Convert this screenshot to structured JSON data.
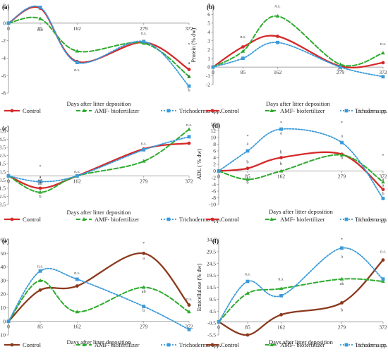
{
  "colors": {
    "Control": "#d42a2a",
    "AMF- biofertilizer": "#2eaa2e",
    "Trichoderma spp.": "#3a9ad9",
    "ControlBrown": "#8b3a1e"
  },
  "chart_data": [
    {
      "type": "line",
      "panel": "(a)",
      "ylabel": "Energy ( MJ kg⁻¹)",
      "xlabel": "Days after litter deposition",
      "x": [
        0,
        85,
        162,
        279,
        372
      ],
      "xticks": [
        "0",
        "85",
        "162",
        "279",
        "372"
      ],
      "ylim": [
        -8,
        2
      ],
      "yticks": [
        2,
        0,
        -2,
        -4,
        -6,
        -8
      ],
      "ytick_labels": [
        "2",
        "0",
        "-2",
        "-4",
        "-6",
        "-8"
      ],
      "series": [
        {
          "name": "Control",
          "values": [
            0,
            1.7,
            -4.4,
            -2.2,
            -5.3
          ]
        },
        {
          "name": "AMF- biofertilizer",
          "values": [
            0,
            0.5,
            -3.2,
            -2.3,
            -6.1
          ]
        },
        {
          "name": "Trichoderma spp.",
          "values": [
            0,
            1.8,
            -4.5,
            -2.1,
            -7.2
          ]
        }
      ],
      "annotations": [
        {
          "text": "n.s.",
          "x": 85,
          "y": -0.9,
          "style": "ns"
        },
        {
          "text": "n.s.",
          "x": 162,
          "y": -5.5,
          "style": "ns"
        },
        {
          "text": "n.s.",
          "x": 279,
          "y": -1.3,
          "style": "ns"
        },
        {
          "text": "*",
          "x": 372,
          "y": -2.6
        },
        {
          "text": "a",
          "x": 372,
          "y": -4.7
        },
        {
          "text": "b",
          "x": 372,
          "y": -6.3
        },
        {
          "text": "b",
          "x": 372,
          "y": -7.8
        }
      ]
    },
    {
      "type": "line",
      "panel": "(b)",
      "ylabel": "Protein (% dw)",
      "xlabel": "Days after litter deposition",
      "x": [
        0,
        85,
        162,
        279,
        372
      ],
      "xticks": [
        "0",
        "85",
        "162",
        "279",
        "372"
      ],
      "ylim": [
        -2,
        7
      ],
      "yticks": [
        7,
        6,
        5,
        4,
        3,
        2,
        1,
        0,
        -1,
        -2
      ],
      "ytick_labels": [
        "7",
        "6",
        "5",
        "4",
        "3",
        "2",
        "1",
        "0",
        "-1",
        "-2"
      ],
      "series": [
        {
          "name": "Control",
          "values": [
            0,
            2.3,
            3.5,
            0.1,
            0.5
          ]
        },
        {
          "name": "AMF- biofertilizer",
          "values": [
            0,
            1.8,
            5.8,
            0.3,
            1.6
          ]
        },
        {
          "name": "Trichoderma spp.",
          "values": [
            0,
            1.0,
            2.8,
            0,
            -1.1
          ]
        }
      ],
      "annotations": [
        {
          "text": "n.s.",
          "x": 85,
          "y": 3.3,
          "style": "ns"
        },
        {
          "text": "n.s.",
          "x": 162,
          "y": 6.8,
          "style": "ns"
        },
        {
          "text": "n.s.",
          "x": 279,
          "y": -0.4,
          "style": "ns"
        },
        {
          "text": "n.s.",
          "x": 372,
          "y": 2.5,
          "style": "ns"
        }
      ]
    },
    {
      "type": "line",
      "panel": "(c)",
      "ylabel": "Lipid (% dw)",
      "xlabel": "Days after litter deposition",
      "x": [
        0,
        85,
        162,
        279,
        372
      ],
      "xticks": [
        "0",
        "85",
        "162",
        "279",
        "372"
      ],
      "ylim": [
        -3.5,
        6
      ],
      "yticks": [
        5.5,
        4.5,
        3.5,
        2.5,
        1.5,
        0.5,
        -0.5,
        -1.5,
        -2.5,
        -3.5
      ],
      "ytick_labels": [
        "5.5",
        "4.5",
        "3.5",
        "2.5",
        "1.5",
        "0.5",
        "-0.5",
        "-1.5",
        "-2.5",
        "-3.5"
      ],
      "series": [
        {
          "name": "Control",
          "values": [
            0,
            -1.5,
            0,
            3.3,
            4.0
          ]
        },
        {
          "name": "AMF- biofertilizer",
          "values": [
            0,
            -2.0,
            0,
            1.8,
            5.7
          ]
        },
        {
          "name": "Trichoderma spp.",
          "values": [
            0,
            -0.7,
            0,
            3.2,
            4.8
          ]
        }
      ],
      "annotations": [
        {
          "text": "*",
          "x": 85,
          "y": 1.0
        },
        {
          "text": "a",
          "x": 85,
          "y": -0.3
        },
        {
          "text": "ab",
          "x": 85,
          "y": -1.1
        },
        {
          "text": "b",
          "x": 85,
          "y": -2.7
        },
        {
          "text": "n.s.",
          "x": 162,
          "y": 0.4,
          "style": "ns"
        },
        {
          "text": "n.s.",
          "x": 279,
          "y": 3.8,
          "style": "ns"
        },
        {
          "text": "n.s.",
          "x": 372,
          "y": 6.1,
          "style": "ns"
        }
      ]
    },
    {
      "type": "line",
      "panel": "(d)",
      "ylabel": "ADL ( % dw)",
      "xlabel": "Days after litter deposition",
      "x": [
        0,
        85,
        162,
        279,
        372
      ],
      "xticks": [
        "0",
        "85",
        "162",
        "279",
        "372"
      ],
      "ylim": [
        -10,
        14
      ],
      "yticks": [
        14,
        12,
        10,
        8,
        6,
        4,
        2,
        0,
        -2,
        -4,
        -6,
        -8,
        -10
      ],
      "ytick_labels": [
        "14",
        "12",
        "10",
        "8",
        "6",
        "4",
        "2",
        "0",
        "-2",
        "-4",
        "-6",
        "-8",
        "-10"
      ],
      "series": [
        {
          "name": "Control",
          "values": [
            0,
            0.8,
            4.0,
            5.0,
            -5.5
          ]
        },
        {
          "name": "AMF- biofertilizer",
          "values": [
            0,
            -2.5,
            0,
            4.8,
            -3.3
          ]
        },
        {
          "name": "Trichoderma spp.",
          "values": [
            0,
            6.0,
            12.5,
            8.5,
            -8.2
          ]
        }
      ],
      "annotations": [
        {
          "text": "*",
          "x": 85,
          "y": 10.0
        },
        {
          "text": "a",
          "x": 85,
          "y": 7.8
        },
        {
          "text": "b",
          "x": 85,
          "y": 2.3
        },
        {
          "text": "b",
          "x": 85,
          "y": -3.8
        },
        {
          "text": "*",
          "x": 162,
          "y": 14.0
        },
        {
          "text": "a",
          "x": 162,
          "y": 11.0
        },
        {
          "text": "b",
          "x": 162,
          "y": 5.3
        },
        {
          "text": "b",
          "x": 162,
          "y": 1.8
        },
        {
          "text": "*",
          "x": 279,
          "y": 14.0
        },
        {
          "text": "a",
          "x": 279,
          "y": 10.1
        },
        {
          "text": "b",
          "x": 279,
          "y": 3.6
        },
        {
          "text": "*",
          "x": 372,
          "y": 4.2
        },
        {
          "text": "a",
          "x": 372,
          "y": -2.8
        },
        {
          "text": "a",
          "x": 372,
          "y": -4.6
        },
        {
          "text": "b",
          "x": 372,
          "y": -7.2
        }
      ]
    },
    {
      "type": "line",
      "panel": "(e)",
      "ylabel": "Cellulose (% dw)",
      "xlabel": "Days after litter deposition",
      "x": [
        0,
        85,
        162,
        279,
        372
      ],
      "xticks": [
        "0",
        "85",
        "162",
        "279",
        "372"
      ],
      "ylim": [
        -10,
        60
      ],
      "yticks": [
        60,
        50,
        40,
        30,
        20,
        10,
        0,
        -10
      ],
      "ytick_labels": [
        "60",
        "50",
        "40",
        "30",
        "20",
        "10",
        "0",
        "-10"
      ],
      "series": [
        {
          "name": "Control",
          "values": [
            0,
            23,
            26,
            50,
            12
          ]
        },
        {
          "name": "AMF- biofertilizer",
          "values": [
            0,
            30,
            7,
            25,
            7
          ]
        },
        {
          "name": "Trichoderma spp.",
          "values": [
            0,
            37,
            31,
            11,
            -6
          ]
        }
      ],
      "annotations": [
        {
          "text": "n.s.",
          "x": 85,
          "y": 39.5,
          "style": "ns"
        },
        {
          "text": "n.s.",
          "x": 162,
          "y": 34.5,
          "style": "ns"
        },
        {
          "text": "*",
          "x": 279,
          "y": 56.5
        },
        {
          "text": "a",
          "x": 279,
          "y": 45.5
        },
        {
          "text": "ab",
          "x": 279,
          "y": 21.0
        },
        {
          "text": "b",
          "x": 279,
          "y": 7.0
        },
        {
          "text": "n.s.",
          "x": 372,
          "y": 15.5,
          "style": "ns"
        }
      ]
    },
    {
      "type": "line",
      "panel": "(f)",
      "ylabel": "Emicellulose (% dw)",
      "xlabel": "Days after litter deposition",
      "x": [
        0,
        85,
        162,
        279,
        372
      ],
      "xticks": [
        "0",
        "85",
        "162",
        "279",
        "372"
      ],
      "ylim": [
        -5.5,
        34.5
      ],
      "yticks": [
        34.5,
        29.5,
        24.5,
        19.5,
        14.5,
        9.5,
        4.5,
        -0.5,
        -5.5
      ],
      "ytick_labels": [
        "34.5",
        "29.5",
        "24.5",
        "19.5",
        "14.5",
        "9.5",
        "4.5",
        "-0.5",
        "-5.5"
      ],
      "series": [
        {
          "name": "Control",
          "values": [
            0,
            -5.5,
            3,
            8,
            26
          ]
        },
        {
          "name": "AMF- biofertilizer",
          "values": [
            0,
            12,
            14,
            18,
            17
          ]
        },
        {
          "name": "Trichoderma spp.",
          "values": [
            0,
            17,
            11,
            31,
            18
          ]
        }
      ],
      "annotations": [
        {
          "text": "n.s.",
          "x": 85,
          "y": 19.5,
          "style": "ns"
        },
        {
          "text": "n.s.",
          "x": 162,
          "y": 17.5,
          "style": "ns"
        },
        {
          "text": "*",
          "x": 279,
          "y": 34.0
        },
        {
          "text": "a",
          "x": 279,
          "y": 27.0
        },
        {
          "text": "ab",
          "x": 279,
          "y": 15.5
        },
        {
          "text": "b",
          "x": 279,
          "y": 4.5
        },
        {
          "text": "n.s.",
          "x": 372,
          "y": 29.0,
          "style": "ns"
        }
      ]
    }
  ],
  "legends": [
    {
      "items": [
        "Control",
        "AMF- biofertilizer",
        "Trichoderma spp."
      ]
    },
    {
      "items": [
        "Control",
        "AMF- biofertilizer",
        "Trichoderma spp."
      ]
    },
    {
      "items": [
        "Control",
        "AMF- biofertilizer",
        "Trichoderma spp."
      ]
    }
  ]
}
